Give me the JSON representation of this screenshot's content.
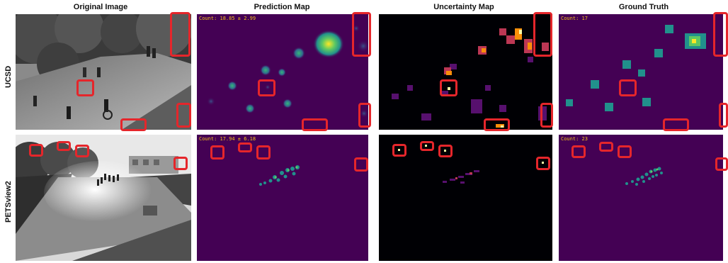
{
  "columns": {
    "original": "Original Image",
    "prediction": "Prediction Map",
    "uncertainty": "Uncertainty Map",
    "ground_truth": "Ground Truth"
  },
  "rows": {
    "ucsd": {
      "label": "UCSD",
      "prediction_count": "Count: 18.85 ± 2.99",
      "ground_truth_count": "Count: 17"
    },
    "pets": {
      "label": "PETSview2",
      "prediction_count": "Count: 17.94 ± 6.18",
      "ground_truth_count": "Count: 23"
    }
  },
  "colors": {
    "viridis_bg": "#440154",
    "inferno_bg": "#000004",
    "highlight_box": "#e5262b",
    "count_text": "#f2c21b"
  }
}
